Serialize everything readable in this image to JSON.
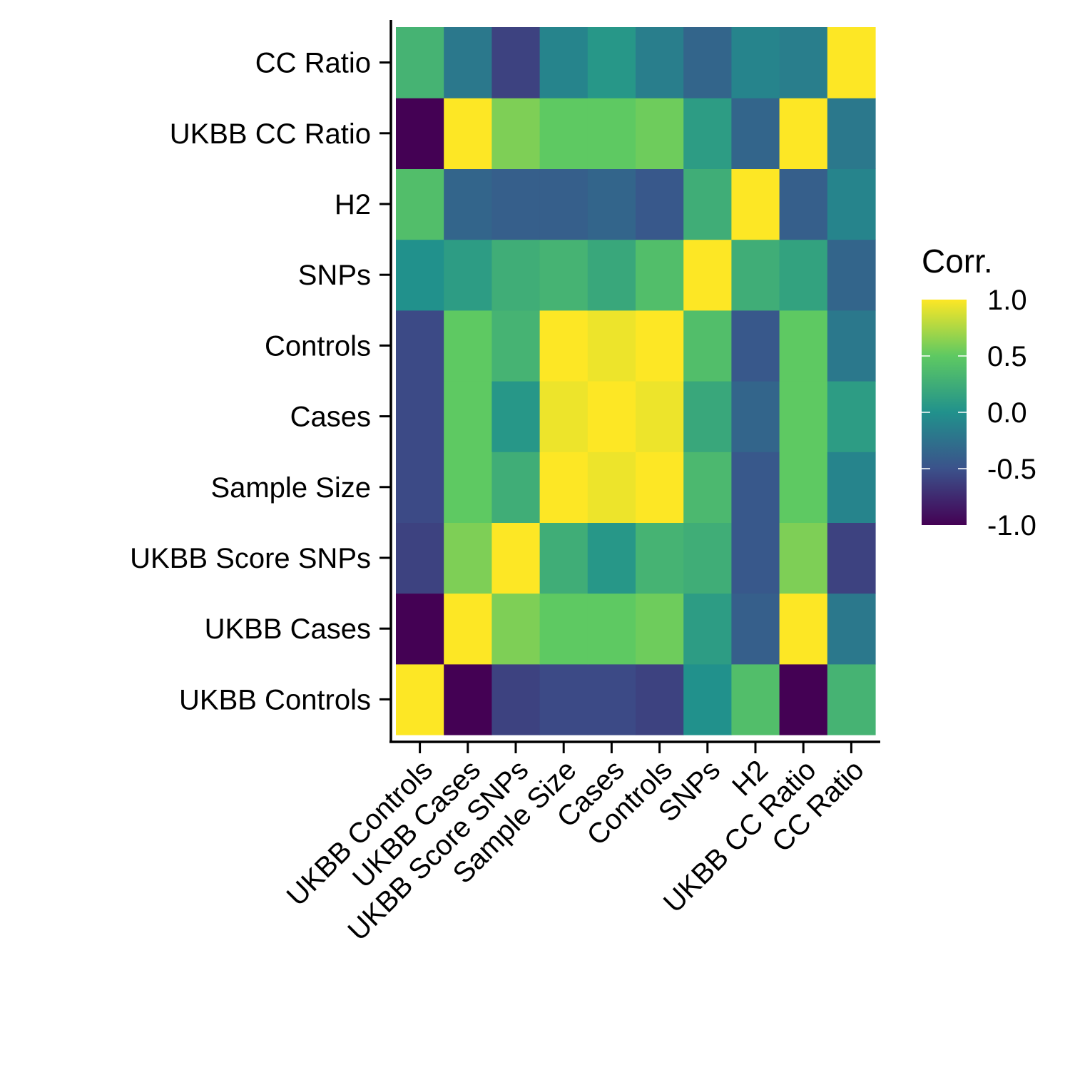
{
  "chart_data": {
    "type": "heatmap",
    "title": "",
    "xlabel": "",
    "ylabel": "",
    "x_categories": [
      "UKBB Controls",
      "UKBB Cases",
      "UKBB Score SNPs",
      "Sample Size",
      "Cases",
      "Controls",
      "SNPs",
      "H2",
      "UKBB CC Ratio",
      "CC Ratio"
    ],
    "y_categories": [
      "UKBB Controls",
      "UKBB Cases",
      "UKBB Score SNPs",
      "Sample Size",
      "Cases",
      "Controls",
      "SNPs",
      "H2",
      "UKBB CC Ratio",
      "CC Ratio"
    ],
    "values": [
      [
        1.0,
        -1.0,
        -0.6,
        -0.55,
        -0.55,
        -0.6,
        0.0,
        0.4,
        -1.0,
        0.3
      ],
      [
        -1.0,
        1.0,
        0.6,
        0.5,
        0.5,
        0.55,
        0.1,
        -0.4,
        1.0,
        -0.2
      ],
      [
        -0.6,
        0.6,
        1.0,
        0.25,
        0.05,
        0.3,
        0.25,
        -0.45,
        0.6,
        -0.6
      ],
      [
        -0.55,
        0.5,
        0.25,
        1.0,
        0.95,
        1.0,
        0.35,
        -0.45,
        0.5,
        -0.1
      ],
      [
        -0.55,
        0.5,
        0.05,
        0.95,
        1.0,
        0.95,
        0.2,
        -0.35,
        0.5,
        0.1
      ],
      [
        -0.55,
        0.5,
        0.3,
        1.0,
        0.95,
        1.0,
        0.4,
        -0.45,
        0.5,
        -0.2
      ],
      [
        0.0,
        0.1,
        0.25,
        0.3,
        0.2,
        0.4,
        1.0,
        0.25,
        0.15,
        -0.35
      ],
      [
        0.4,
        -0.35,
        -0.4,
        -0.4,
        -0.35,
        -0.45,
        0.25,
        1.0,
        -0.4,
        -0.1
      ],
      [
        -1.0,
        1.0,
        0.6,
        0.5,
        0.5,
        0.55,
        0.1,
        -0.35,
        1.0,
        -0.2
      ],
      [
        0.3,
        -0.2,
        -0.6,
        -0.1,
        0.05,
        -0.15,
        -0.35,
        -0.1,
        -0.15,
        1.0
      ]
    ],
    "zlim": [
      -1.0,
      1.0
    ],
    "colormap": "viridis",
    "colormap_stops": [
      "#440154",
      "#3b528b",
      "#21918c",
      "#5ec962",
      "#fde725"
    ],
    "legend": {
      "title": "Corr.",
      "ticks": [
        "1.0",
        "0.5",
        "0.0",
        "-0.5",
        "-1.0"
      ],
      "tick_values": [
        1.0,
        0.5,
        0.0,
        -0.5,
        -1.0
      ],
      "placement": "right"
    },
    "grid": false
  }
}
